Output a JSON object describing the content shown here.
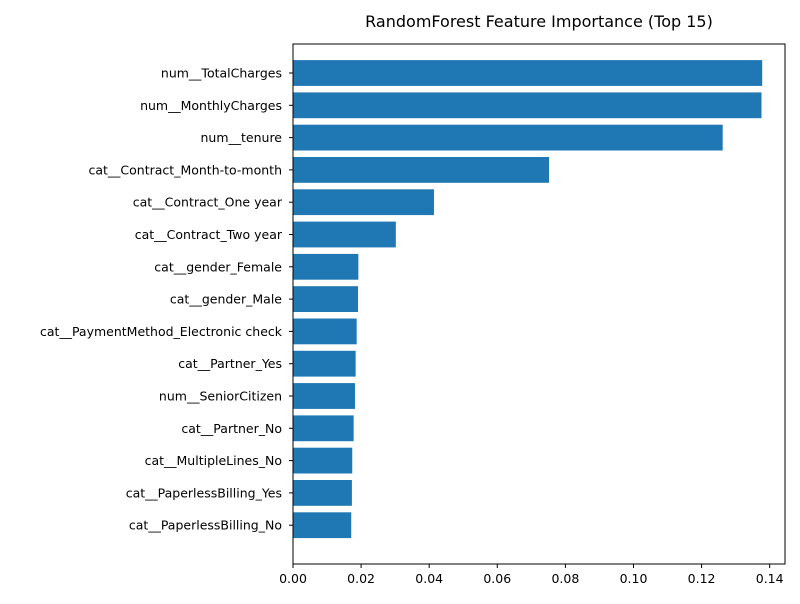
{
  "chart_data": {
    "type": "bar",
    "orientation": "horizontal",
    "title": "RandomForest Feature Importance (Top 15)",
    "xlabel": "",
    "ylabel": "",
    "xlim": [
      0,
      0.1445
    ],
    "xticks": [
      "0.00",
      "0.02",
      "0.04",
      "0.06",
      "0.08",
      "0.10",
      "0.12",
      "0.14"
    ],
    "grid": false,
    "bar_color": "#1f77b4",
    "categories": [
      "num__TotalCharges",
      "num__MonthlyCharges",
      "num__tenure",
      "cat__Contract_Month-to-month",
      "cat__Contract_One year",
      "cat__Contract_Two year",
      "cat__gender_Female",
      "cat__gender_Male",
      "cat__PaymentMethod_Electronic check",
      "cat__Partner_Yes",
      "num__SeniorCitizen",
      "cat__Partner_No",
      "cat__MultipleLines_No",
      "cat__PaperlessBilling_Yes",
      "cat__PaperlessBilling_No"
    ],
    "values": [
      0.1378,
      0.1376,
      0.1262,
      0.0752,
      0.0414,
      0.0302,
      0.0192,
      0.0191,
      0.0187,
      0.0184,
      0.0182,
      0.0178,
      0.0174,
      0.0173,
      0.0171
    ]
  }
}
